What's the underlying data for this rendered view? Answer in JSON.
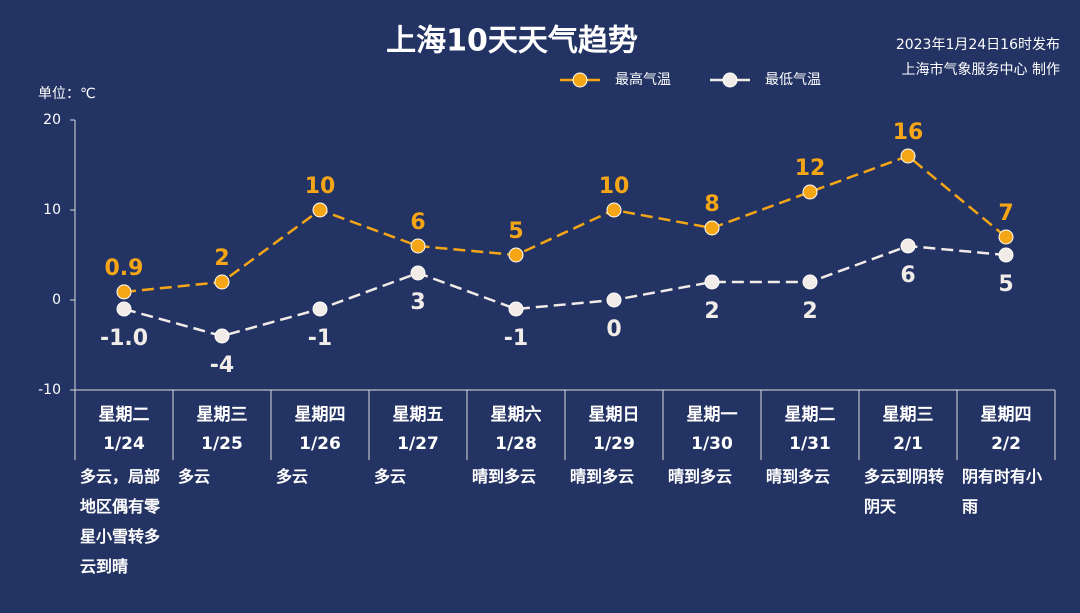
{
  "chart_data": {
    "type": "line",
    "title": "上海10天天气趋势",
    "issued": "2023年1月24日16时发布",
    "source": "上海市气象服务中心 制作",
    "unit_label": "单位：℃",
    "categories": [
      "星期二",
      "星期三",
      "星期四",
      "星期五",
      "星期六",
      "星期日",
      "星期一",
      "星期二",
      "星期三",
      "星期四"
    ],
    "dates": [
      "1/24",
      "1/25",
      "1/26",
      "1/27",
      "1/28",
      "1/29",
      "1/30",
      "1/31",
      "2/1",
      "2/2"
    ],
    "weather": [
      "多云，局部地区偶有零星小雪转多云到晴",
      "多云",
      "多云",
      "多云",
      "晴到多云",
      "晴到多云",
      "晴到多云",
      "晴到多云",
      "多云到阴转阴天",
      "阴有时有小雨"
    ],
    "series": [
      {
        "name": "最高气温",
        "color": "#f5a617",
        "values": [
          0.9,
          2,
          10,
          6,
          5,
          10,
          8,
          12,
          16,
          7
        ]
      },
      {
        "name": "最低气温",
        "color": "#f2ece8",
        "values": [
          -1,
          -4,
          -1,
          3,
          -1,
          0,
          2,
          2,
          6,
          5
        ],
        "value_labels": [
          "-1.0",
          "-4",
          "-1",
          "3",
          "-1",
          "0",
          "2",
          "2",
          "6",
          "5"
        ]
      }
    ],
    "ylim": [
      -10,
      20
    ],
    "yticks": [
      -10,
      0,
      10,
      20
    ]
  }
}
